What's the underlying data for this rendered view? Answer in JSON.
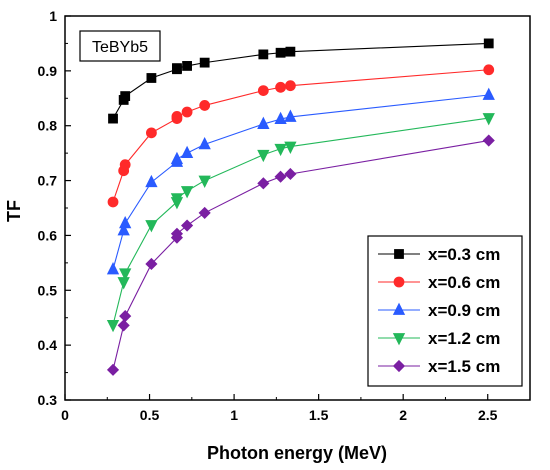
{
  "chart_data": {
    "type": "line",
    "annotation": "TeBYb5",
    "xlabel": "Photon energy (MeV)",
    "ylabel": "TF",
    "xlim": [
      0,
      2.75
    ],
    "ylim": [
      0.3,
      1.0
    ],
    "xticks": [
      0,
      0.5,
      1,
      1.5,
      2,
      2.5
    ],
    "xtick_labels": [
      "0",
      "0.5",
      "1",
      "1.5",
      "2",
      "2.5"
    ],
    "yticks": [
      0.3,
      0.4,
      0.5,
      0.6,
      0.7,
      0.8,
      0.9,
      1.0
    ],
    "ytick_labels": [
      "0.3",
      "0.4",
      "0.5",
      "0.6",
      "0.7",
      "0.8",
      "0.9",
      "1"
    ],
    "grid": false,
    "legend_position": "bottom-right",
    "x": [
      0.284,
      0.347,
      0.356,
      0.511,
      0.662,
      0.662,
      0.722,
      0.826,
      1.173,
      1.275,
      1.333,
      2.506
    ],
    "series": [
      {
        "name": "x=0.3 cm",
        "marker": "square",
        "color": "#000000",
        "values": [
          0.813,
          0.847,
          0.854,
          0.887,
          0.903,
          0.905,
          0.909,
          0.915,
          0.93,
          0.933,
          0.935,
          0.95
        ]
      },
      {
        "name": "x=0.6 cm",
        "marker": "circle",
        "color": "#ff2a2a",
        "values": [
          0.661,
          0.718,
          0.729,
          0.787,
          0.813,
          0.817,
          0.825,
          0.837,
          0.864,
          0.87,
          0.873,
          0.902
        ]
      },
      {
        "name": "x=0.9 cm",
        "marker": "triangle-up",
        "color": "#2a5bff",
        "values": [
          0.538,
          0.609,
          0.622,
          0.697,
          0.734,
          0.739,
          0.75,
          0.766,
          0.803,
          0.812,
          0.816,
          0.856
        ]
      },
      {
        "name": "x=1.2 cm",
        "marker": "triangle-down",
        "color": "#23b85a",
        "values": [
          0.437,
          0.515,
          0.531,
          0.619,
          0.661,
          0.668,
          0.681,
          0.7,
          0.747,
          0.758,
          0.762,
          0.814
        ]
      },
      {
        "name": "x=1.5 cm",
        "marker": "diamond",
        "color": "#7a1fa2",
        "values": [
          0.355,
          0.436,
          0.453,
          0.548,
          0.596,
          0.603,
          0.618,
          0.641,
          0.695,
          0.707,
          0.712,
          0.773
        ]
      }
    ]
  }
}
